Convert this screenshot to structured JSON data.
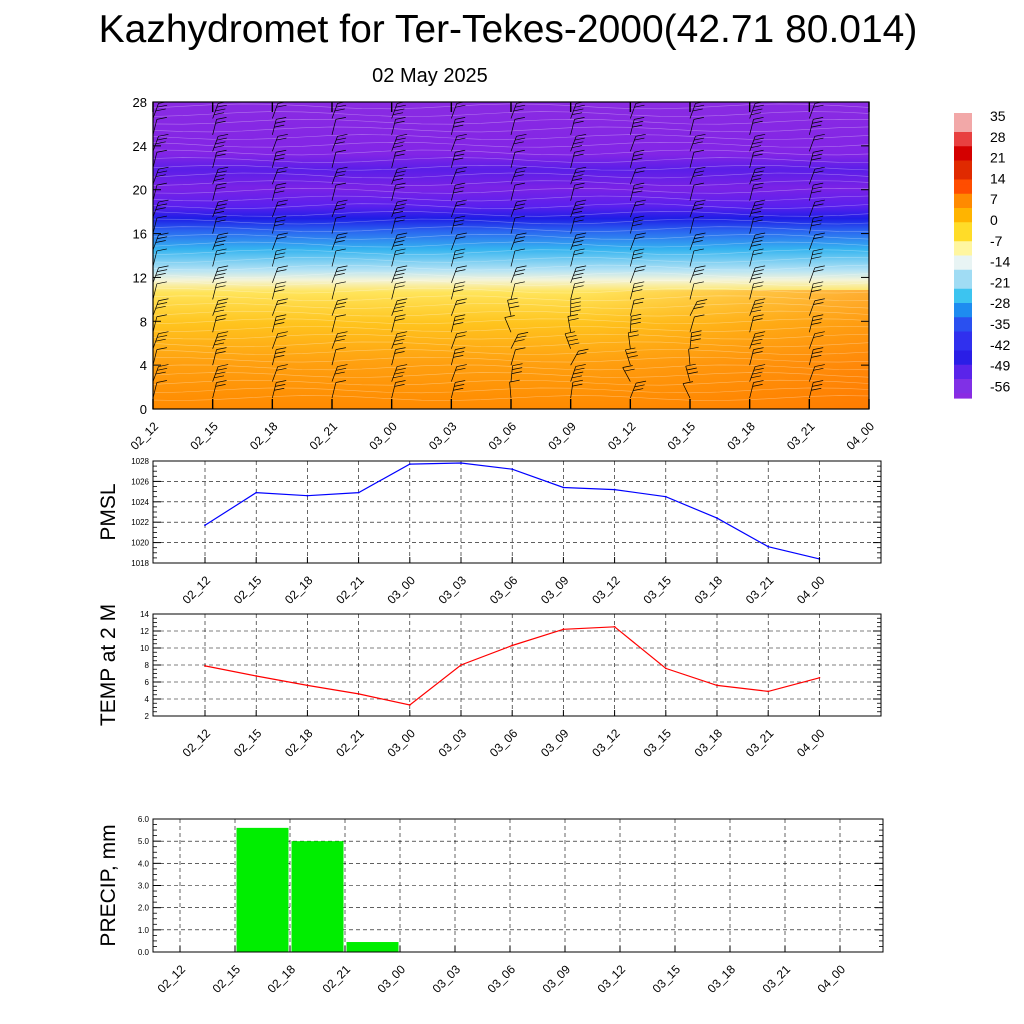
{
  "header": {
    "title": "Kazhydromet for Ter-Tekes-2000(42.71 80.014)",
    "subtitle": "02 May 2025"
  },
  "chart_data": [
    {
      "type": "heatmap",
      "title": "",
      "xlabel": "",
      "ylabel": "",
      "x": [
        "02_12",
        "02_15",
        "02_18",
        "02_21",
        "03_00",
        "03_03",
        "03_06",
        "03_09",
        "03_12",
        "03_15",
        "03_18",
        "03_21",
        "04_00"
      ],
      "y_ticks": [
        0,
        4,
        8,
        12,
        16,
        20,
        24,
        28
      ],
      "ylim": [
        0,
        28
      ],
      "colorbar": {
        "labels": [
          "35",
          "28",
          "21",
          "14",
          "7",
          "0",
          "-7",
          "-14",
          "-21",
          "-28",
          "-35",
          "-42",
          "-49",
          "-56"
        ],
        "min": -63,
        "max": 42
      },
      "profile_levels": [
        0,
        2,
        4,
        6,
        8,
        10,
        11,
        12,
        14,
        16,
        17,
        18,
        20,
        22,
        24,
        26,
        28
      ],
      "profile_temps": [
        12,
        8,
        4,
        0,
        -5,
        -9,
        -13,
        -22,
        -34,
        -49,
        -58,
        -54,
        -57,
        -54,
        -52,
        -51,
        -51
      ],
      "overlay": "wind barbs"
    },
    {
      "type": "line",
      "ylabel": "PMSL",
      "x": [
        "02_12",
        "02_15",
        "02_18",
        "02_21",
        "03_00",
        "03_03",
        "03_06",
        "03_09",
        "03_12",
        "03_15",
        "03_18",
        "03_21",
        "04_00"
      ],
      "values": [
        1021.7,
        1024.9,
        1024.6,
        1024.9,
        1027.7,
        1027.8,
        1027.2,
        1025.4,
        1025.2,
        1024.5,
        1022.4,
        1019.6,
        1018.4
      ],
      "ylim": [
        1018,
        1028
      ],
      "y_ticks": [
        "1018",
        "1020",
        "1022",
        "1024",
        "1026",
        "1028"
      ],
      "color": "#0000ff",
      "grid": true
    },
    {
      "type": "line",
      "ylabel": "TEMP at 2 M",
      "x": [
        "02_12",
        "02_15",
        "02_18",
        "02_21",
        "03_00",
        "03_03",
        "03_06",
        "03_09",
        "03_12",
        "03_15",
        "03_18",
        "03_21",
        "04_00"
      ],
      "values": [
        7.9,
        6.7,
        5.6,
        4.6,
        3.3,
        8.0,
        10.3,
        12.2,
        12.5,
        7.6,
        5.6,
        4.9,
        6.5
      ],
      "ylim": [
        2,
        14
      ],
      "y_ticks": [
        "2",
        "4",
        "6",
        "8",
        "10",
        "12",
        "14"
      ],
      "color": "#ff0000",
      "grid": true
    },
    {
      "type": "bar",
      "ylabel": "PRECIP, mm",
      "categories": [
        "02_12",
        "02_15",
        "02_18",
        "02_21",
        "03_00",
        "03_03",
        "03_06",
        "03_09",
        "03_12",
        "03_15",
        "03_18",
        "03_21",
        "04_00"
      ],
      "values": [
        0,
        5.6,
        5.0,
        0.45,
        0,
        0,
        0,
        0,
        0,
        0,
        0,
        0,
        0
      ],
      "ylim": [
        0,
        6
      ],
      "y_ticks": [
        "0.0",
        "1.0",
        "2.0",
        "3.0",
        "4.0",
        "5.0",
        "6.0"
      ],
      "color": "#00ee00",
      "grid": true
    }
  ]
}
